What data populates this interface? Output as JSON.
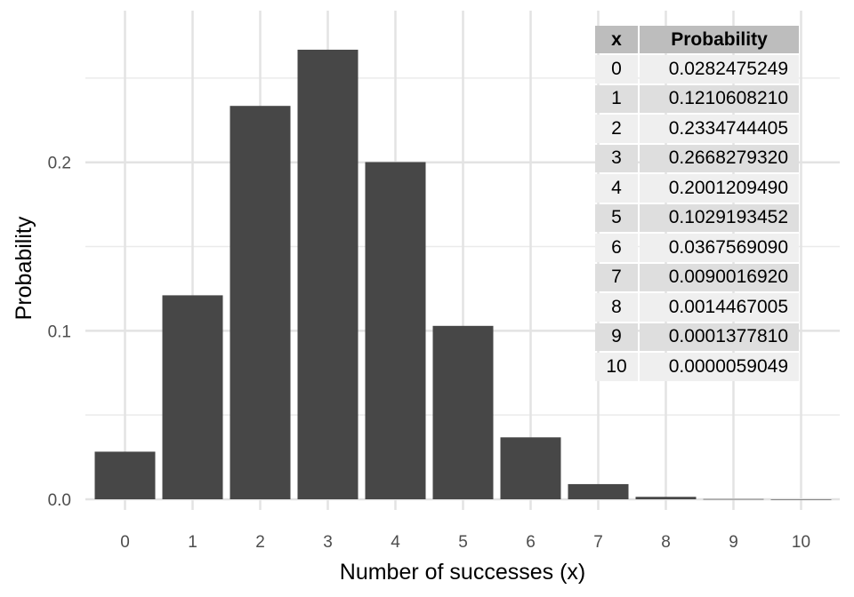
{
  "chart_data": {
    "type": "bar",
    "categories": [
      "0",
      "1",
      "2",
      "3",
      "4",
      "5",
      "6",
      "7",
      "8",
      "9",
      "10"
    ],
    "values": [
      0.0282475249,
      0.121060821,
      0.2334744405,
      0.266827932,
      0.200120949,
      0.1029193452,
      0.036756909,
      0.009001692,
      0.0014467005,
      0.000137781,
      5.9049e-06
    ],
    "title": "",
    "xlabel": "Number of successes (x)",
    "ylabel": "Probability",
    "ylim": [
      0,
      0.29
    ],
    "yticks": [
      0.0,
      0.1,
      0.2
    ],
    "ytick_labels": [
      "0.0",
      "0.1",
      "0.2"
    ],
    "bar_color": "#474747",
    "grid": true,
    "legend": "none"
  },
  "table": {
    "headers": [
      "x",
      "Probability"
    ],
    "rows": [
      [
        "0",
        "0.0282475249"
      ],
      [
        "1",
        "0.1210608210"
      ],
      [
        "2",
        "0.2334744405"
      ],
      [
        "3",
        "0.2668279320"
      ],
      [
        "4",
        "0.2001209490"
      ],
      [
        "5",
        "0.1029193452"
      ],
      [
        "6",
        "0.0367569090"
      ],
      [
        "7",
        "0.0090016920"
      ],
      [
        "8",
        "0.0014467005"
      ],
      [
        "9",
        "0.0001377810"
      ],
      [
        "10",
        "0.0000059049"
      ]
    ]
  }
}
